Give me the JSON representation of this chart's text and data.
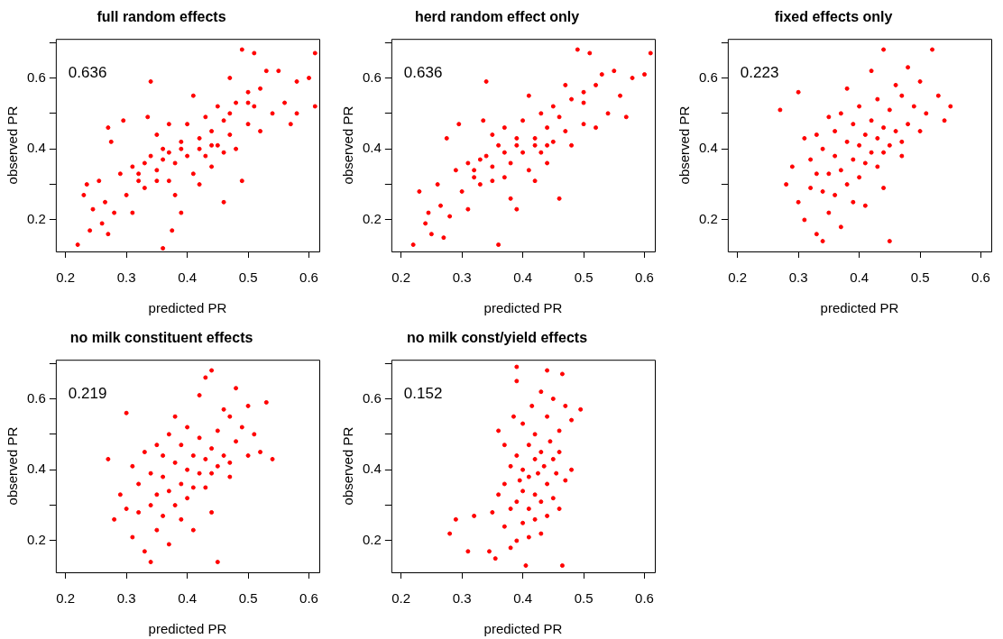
{
  "chart_data": [
    {
      "type": "scatter",
      "title": "full random effects",
      "xlabel": "predicted PR",
      "ylabel": "observed PR",
      "annotations": [
        "0.636"
      ],
      "marker": "circle",
      "xlim": [
        0.184,
        0.617
      ],
      "ylim": [
        0.111,
        0.71
      ],
      "xticks": [
        0.2,
        0.3,
        0.4,
        0.5,
        0.6
      ],
      "yticks": [
        0.2,
        {
          "value": 0.3,
          "label": null
        },
        0.4,
        {
          "value": 0.5,
          "label": null
        },
        0.6,
        {
          "value": 0.7,
          "label": null
        }
      ],
      "series": [
        {
          "color": "#ff0000",
          "x": [
            0.22,
            0.23,
            0.235,
            0.24,
            0.245,
            0.255,
            0.26,
            0.265,
            0.27,
            0.275,
            0.27,
            0.28,
            0.29,
            0.295,
            0.3,
            0.31,
            0.31,
            0.32,
            0.33,
            0.34,
            0.335,
            0.34,
            0.35,
            0.35,
            0.36,
            0.36,
            0.37,
            0.37,
            0.375,
            0.38,
            0.38,
            0.39,
            0.39,
            0.4,
            0.4,
            0.41,
            0.41,
            0.42,
            0.42,
            0.43,
            0.43,
            0.44,
            0.44,
            0.45,
            0.45,
            0.46,
            0.46,
            0.47,
            0.47,
            0.48,
            0.48,
            0.49,
            0.49,
            0.5,
            0.5,
            0.51,
            0.51,
            0.52,
            0.52,
            0.53,
            0.54,
            0.55,
            0.56,
            0.57,
            0.58,
            0.58,
            0.6,
            0.61,
            0.61,
            0.35,
            0.33,
            0.44,
            0.46,
            0.37,
            0.32,
            0.36,
            0.39,
            0.42,
            0.47,
            0.5
          ],
          "values": [
            0.13,
            0.27,
            0.3,
            0.17,
            0.23,
            0.31,
            0.19,
            0.25,
            0.16,
            0.42,
            0.46,
            0.22,
            0.33,
            0.48,
            0.27,
            0.35,
            0.22,
            0.31,
            0.29,
            0.59,
            0.49,
            0.38,
            0.34,
            0.44,
            0.12,
            0.4,
            0.31,
            0.47,
            0.17,
            0.36,
            0.27,
            0.42,
            0.22,
            0.38,
            0.47,
            0.33,
            0.55,
            0.43,
            0.3,
            0.49,
            0.38,
            0.45,
            0.35,
            0.52,
            0.41,
            0.25,
            0.48,
            0.6,
            0.44,
            0.53,
            0.4,
            0.68,
            0.31,
            0.56,
            0.47,
            0.67,
            0.52,
            0.57,
            0.45,
            0.62,
            0.5,
            0.62,
            0.53,
            0.47,
            0.59,
            0.5,
            0.6,
            0.67,
            0.52,
            0.31,
            0.36,
            0.41,
            0.39,
            0.39,
            0.33,
            0.37,
            0.4,
            0.4,
            0.5,
            0.53
          ]
        }
      ]
    },
    {
      "type": "scatter",
      "title": "herd random effect only",
      "xlabel": "predicted PR",
      "ylabel": "observed PR",
      "annotations": [
        "0.636"
      ],
      "marker": "circle",
      "xlim": [
        0.184,
        0.617
      ],
      "ylim": [
        0.111,
        0.71
      ],
      "xticks": [
        0.2,
        0.3,
        0.4,
        0.5,
        0.6
      ],
      "yticks": [
        0.2,
        {
          "value": 0.3,
          "label": null
        },
        0.4,
        {
          "value": 0.5,
          "label": null
        },
        0.6,
        {
          "value": 0.7,
          "label": null
        }
      ],
      "series": [
        {
          "color": "#ff0000",
          "x": [
            0.22,
            0.23,
            0.24,
            0.245,
            0.25,
            0.26,
            0.265,
            0.27,
            0.275,
            0.28,
            0.29,
            0.295,
            0.3,
            0.31,
            0.31,
            0.32,
            0.33,
            0.34,
            0.335,
            0.34,
            0.35,
            0.35,
            0.36,
            0.36,
            0.37,
            0.37,
            0.38,
            0.38,
            0.39,
            0.39,
            0.4,
            0.4,
            0.41,
            0.41,
            0.42,
            0.42,
            0.43,
            0.43,
            0.44,
            0.44,
            0.45,
            0.45,
            0.46,
            0.46,
            0.47,
            0.47,
            0.48,
            0.48,
            0.49,
            0.5,
            0.5,
            0.51,
            0.52,
            0.52,
            0.53,
            0.54,
            0.55,
            0.56,
            0.57,
            0.58,
            0.6,
            0.61,
            0.35,
            0.33,
            0.44,
            0.37,
            0.32,
            0.39,
            0.42,
            0.5
          ],
          "values": [
            0.13,
            0.28,
            0.19,
            0.22,
            0.16,
            0.3,
            0.24,
            0.15,
            0.43,
            0.21,
            0.34,
            0.47,
            0.28,
            0.36,
            0.23,
            0.32,
            0.3,
            0.59,
            0.48,
            0.38,
            0.35,
            0.44,
            0.13,
            0.41,
            0.32,
            0.46,
            0.36,
            0.26,
            0.43,
            0.23,
            0.39,
            0.48,
            0.34,
            0.55,
            0.43,
            0.31,
            0.5,
            0.39,
            0.46,
            0.36,
            0.52,
            0.42,
            0.26,
            0.49,
            0.58,
            0.45,
            0.54,
            0.41,
            0.68,
            0.56,
            0.47,
            0.67,
            0.58,
            0.46,
            0.61,
            0.5,
            0.62,
            0.55,
            0.49,
            0.6,
            0.61,
            0.67,
            0.31,
            0.37,
            0.41,
            0.39,
            0.34,
            0.41,
            0.41,
            0.53
          ]
        }
      ]
    },
    {
      "type": "scatter",
      "title": "fixed effects only",
      "xlabel": "predicted PR",
      "ylabel": "observed PR",
      "annotations": [
        "0.223"
      ],
      "marker": "circle",
      "xlim": [
        0.184,
        0.617
      ],
      "ylim": [
        0.111,
        0.71
      ],
      "xticks": [
        0.2,
        0.3,
        0.4,
        0.5,
        0.6
      ],
      "yticks": [
        0.2,
        {
          "value": 0.3,
          "label": null
        },
        0.4,
        {
          "value": 0.5,
          "label": null
        },
        0.6,
        {
          "value": 0.7,
          "label": null
        }
      ],
      "series": [
        {
          "color": "#ff0000",
          "x": [
            0.27,
            0.28,
            0.29,
            0.3,
            0.3,
            0.31,
            0.31,
            0.32,
            0.32,
            0.33,
            0.33,
            0.33,
            0.34,
            0.34,
            0.34,
            0.35,
            0.35,
            0.35,
            0.36,
            0.36,
            0.36,
            0.37,
            0.37,
            0.37,
            0.38,
            0.38,
            0.38,
            0.39,
            0.39,
            0.39,
            0.4,
            0.4,
            0.4,
            0.41,
            0.41,
            0.41,
            0.42,
            0.42,
            0.42,
            0.43,
            0.43,
            0.43,
            0.44,
            0.44,
            0.44,
            0.45,
            0.45,
            0.45,
            0.46,
            0.46,
            0.47,
            0.47,
            0.48,
            0.48,
            0.49,
            0.5,
            0.5,
            0.51,
            0.52,
            0.53,
            0.54,
            0.55,
            0.44,
            0.47
          ],
          "values": [
            0.51,
            0.3,
            0.35,
            0.56,
            0.25,
            0.43,
            0.2,
            0.37,
            0.29,
            0.16,
            0.44,
            0.33,
            0.14,
            0.4,
            0.28,
            0.49,
            0.33,
            0.22,
            0.38,
            0.27,
            0.45,
            0.5,
            0.34,
            0.18,
            0.42,
            0.3,
            0.57,
            0.37,
            0.25,
            0.47,
            0.41,
            0.32,
            0.52,
            0.44,
            0.36,
            0.24,
            0.39,
            0.48,
            0.62,
            0.43,
            0.35,
            0.54,
            0.68,
            0.46,
            0.29,
            0.41,
            0.51,
            0.14,
            0.45,
            0.58,
            0.38,
            0.55,
            0.47,
            0.63,
            0.52,
            0.45,
            0.59,
            0.5,
            0.68,
            0.55,
            0.48,
            0.52,
            0.39,
            0.42
          ]
        }
      ]
    },
    {
      "type": "scatter",
      "title": "no milk constituent effects",
      "xlabel": "predicted PR",
      "ylabel": "observed PR",
      "annotations": [
        "0.219"
      ],
      "marker": "circle",
      "xlim": [
        0.184,
        0.617
      ],
      "ylim": [
        0.111,
        0.71
      ],
      "xticks": [
        0.2,
        0.3,
        0.4,
        0.5,
        0.6
      ],
      "yticks": [
        0.2,
        {
          "value": 0.3,
          "label": null
        },
        0.4,
        {
          "value": 0.5,
          "label": null
        },
        0.6,
        {
          "value": 0.7,
          "label": null
        }
      ],
      "series": [
        {
          "color": "#ff0000",
          "x": [
            0.27,
            0.28,
            0.29,
            0.3,
            0.3,
            0.31,
            0.31,
            0.32,
            0.32,
            0.33,
            0.33,
            0.34,
            0.34,
            0.34,
            0.35,
            0.35,
            0.35,
            0.36,
            0.36,
            0.36,
            0.37,
            0.37,
            0.37,
            0.38,
            0.38,
            0.38,
            0.39,
            0.39,
            0.39,
            0.4,
            0.4,
            0.4,
            0.41,
            0.41,
            0.41,
            0.42,
            0.42,
            0.42,
            0.43,
            0.43,
            0.43,
            0.44,
            0.44,
            0.44,
            0.45,
            0.45,
            0.45,
            0.46,
            0.46,
            0.47,
            0.47,
            0.48,
            0.48,
            0.49,
            0.5,
            0.5,
            0.51,
            0.52,
            0.53,
            0.54,
            0.44,
            0.47
          ],
          "values": [
            0.43,
            0.26,
            0.33,
            0.56,
            0.29,
            0.41,
            0.21,
            0.36,
            0.28,
            0.17,
            0.45,
            0.14,
            0.39,
            0.3,
            0.47,
            0.33,
            0.23,
            0.38,
            0.27,
            0.44,
            0.5,
            0.34,
            0.19,
            0.42,
            0.3,
            0.55,
            0.36,
            0.26,
            0.47,
            0.4,
            0.32,
            0.52,
            0.44,
            0.35,
            0.23,
            0.39,
            0.49,
            0.61,
            0.43,
            0.35,
            0.66,
            0.68,
            0.46,
            0.28,
            0.41,
            0.51,
            0.14,
            0.44,
            0.57,
            0.38,
            0.55,
            0.48,
            0.63,
            0.52,
            0.44,
            0.58,
            0.5,
            0.45,
            0.59,
            0.43,
            0.39,
            0.42
          ]
        }
      ]
    },
    {
      "type": "scatter",
      "title": "no milk const/yield effects",
      "xlabel": "predicted PR",
      "ylabel": "observed PR",
      "annotations": [
        "0.152"
      ],
      "marker": "circle",
      "xlim": [
        0.184,
        0.617
      ],
      "ylim": [
        0.111,
        0.71
      ],
      "xticks": [
        0.2,
        0.3,
        0.4,
        0.5,
        0.6
      ],
      "yticks": [
        0.2,
        {
          "value": 0.3,
          "label": null
        },
        0.4,
        {
          "value": 0.5,
          "label": null
        },
        0.6,
        {
          "value": 0.7,
          "label": null
        }
      ],
      "series": [
        {
          "color": "#ff0000",
          "x": [
            0.28,
            0.29,
            0.31,
            0.32,
            0.345,
            0.35,
            0.355,
            0.36,
            0.36,
            0.37,
            0.37,
            0.37,
            0.38,
            0.38,
            0.38,
            0.385,
            0.39,
            0.39,
            0.39,
            0.39,
            0.395,
            0.4,
            0.4,
            0.4,
            0.4,
            0.405,
            0.41,
            0.41,
            0.41,
            0.41,
            0.415,
            0.42,
            0.42,
            0.42,
            0.42,
            0.425,
            0.43,
            0.43,
            0.43,
            0.43,
            0.435,
            0.44,
            0.44,
            0.44,
            0.44,
            0.445,
            0.45,
            0.45,
            0.45,
            0.455,
            0.46,
            0.46,
            0.46,
            0.465,
            0.47,
            0.47,
            0.48,
            0.48,
            0.495,
            0.39,
            0.465
          ],
          "values": [
            0.22,
            0.26,
            0.17,
            0.27,
            0.17,
            0.28,
            0.15,
            0.51,
            0.33,
            0.24,
            0.47,
            0.36,
            0.29,
            0.41,
            0.18,
            0.55,
            0.69,
            0.31,
            0.44,
            0.2,
            0.37,
            0.25,
            0.4,
            0.53,
            0.34,
            0.13,
            0.47,
            0.29,
            0.38,
            0.21,
            0.58,
            0.43,
            0.33,
            0.5,
            0.26,
            0.39,
            0.62,
            0.45,
            0.31,
            0.22,
            0.41,
            0.68,
            0.36,
            0.55,
            0.27,
            0.48,
            0.43,
            0.32,
            0.6,
            0.39,
            0.51,
            0.29,
            0.45,
            0.67,
            0.58,
            0.37,
            0.54,
            0.4,
            0.57,
            0.65,
            0.13
          ]
        }
      ]
    }
  ]
}
